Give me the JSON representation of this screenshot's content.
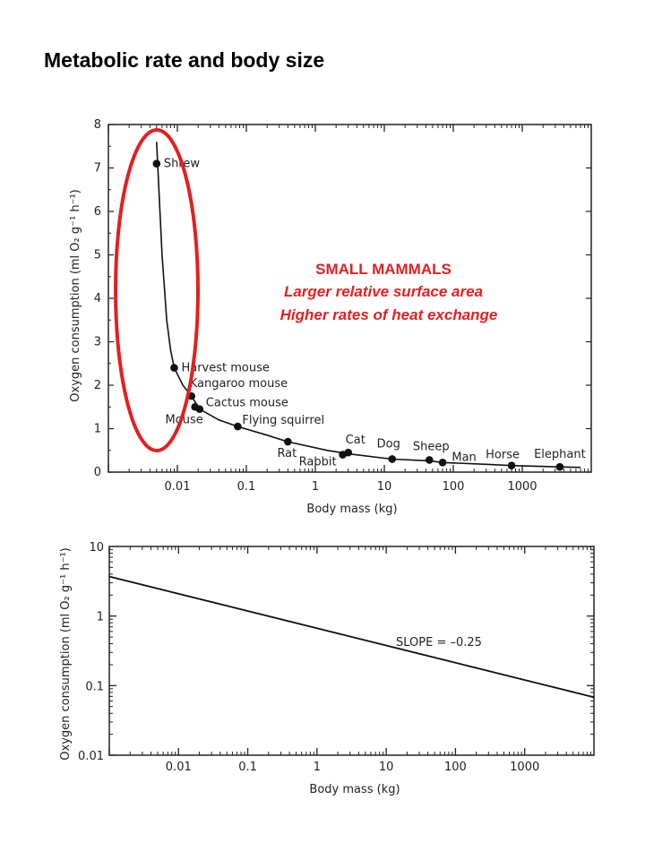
{
  "page": {
    "title": "Metabolic rate and body size"
  },
  "colors": {
    "axis": "#222222",
    "curve": "#111111",
    "highlight": "#e41f1f"
  },
  "chart_data": [
    {
      "type": "line",
      "xlabel": "Body mass (kg)",
      "ylabel": "Oxygen consumption (ml O₂ g⁻¹ h⁻¹)",
      "xscale": "log",
      "xlim": [
        0.001,
        10000
      ],
      "ylim": [
        0,
        8
      ],
      "x_ticks": [
        {
          "value": 0.01,
          "label": "0.01"
        },
        {
          "value": 0.1,
          "label": "0.1"
        },
        {
          "value": 1,
          "label": "1"
        },
        {
          "value": 10,
          "label": "10"
        },
        {
          "value": 100,
          "label": "100"
        },
        {
          "value": 1000,
          "label": "1000"
        }
      ],
      "y_ticks": [
        {
          "value": 0,
          "label": "0"
        },
        {
          "value": 1,
          "label": "1"
        },
        {
          "value": 2,
          "label": "2"
        },
        {
          "value": 3,
          "label": "3"
        },
        {
          "value": 4,
          "label": "4"
        },
        {
          "value": 5,
          "label": "5"
        },
        {
          "value": 6,
          "label": "6"
        },
        {
          "value": 7,
          "label": "7"
        },
        {
          "value": 8,
          "label": "8"
        }
      ],
      "points": [
        {
          "name": "Shrew",
          "x": 0.005,
          "y": 7.1
        },
        {
          "name": "Harvest mouse",
          "x": 0.009,
          "y": 2.4
        },
        {
          "name": "Kangaroo  mouse",
          "x": 0.016,
          "y": 1.75
        },
        {
          "name": "Mouse",
          "x": 0.018,
          "y": 1.5
        },
        {
          "name": "Cactus mouse",
          "x": 0.021,
          "y": 1.45
        },
        {
          "name": "Flying squirrel",
          "x": 0.075,
          "y": 1.05
        },
        {
          "name": "Rat",
          "x": 0.4,
          "y": 0.7
        },
        {
          "name": "Rabbit",
          "x": 2.5,
          "y": 0.4
        },
        {
          "name": "Cat",
          "x": 3.0,
          "y": 0.45
        },
        {
          "name": "Dog",
          "x": 13,
          "y": 0.3
        },
        {
          "name": "Sheep",
          "x": 45,
          "y": 0.28
        },
        {
          "name": "Man",
          "x": 70,
          "y": 0.22
        },
        {
          "name": "Horse",
          "x": 700,
          "y": 0.15
        },
        {
          "name": "Elephant",
          "x": 3500,
          "y": 0.12
        }
      ],
      "curve": [
        [
          0.005,
          7.6
        ],
        [
          0.006,
          5.0
        ],
        [
          0.007,
          3.5
        ],
        [
          0.008,
          2.8
        ],
        [
          0.009,
          2.4
        ],
        [
          0.012,
          2.0
        ],
        [
          0.016,
          1.75
        ],
        [
          0.021,
          1.45
        ],
        [
          0.04,
          1.2
        ],
        [
          0.075,
          1.05
        ],
        [
          0.2,
          0.85
        ],
        [
          0.4,
          0.7
        ],
        [
          1.5,
          0.5
        ],
        [
          3,
          0.42
        ],
        [
          13,
          0.3
        ],
        [
          45,
          0.26
        ],
        [
          70,
          0.22
        ],
        [
          300,
          0.18
        ],
        [
          700,
          0.15
        ],
        [
          3500,
          0.12
        ],
        [
          7000,
          0.11
        ]
      ],
      "annotation": {
        "heading": "SMALL MAMMALS",
        "lines": [
          "Larger relative surface area",
          "Higher rates of heat exchange"
        ]
      }
    },
    {
      "type": "line",
      "xlabel": "Body mass (kg)",
      "ylabel": "Oxygen consumption (ml O₂ g⁻¹ h⁻¹)",
      "xscale": "log",
      "yscale": "log",
      "xlim": [
        0.001,
        10000
      ],
      "ylim": [
        0.01,
        10
      ],
      "x_ticks": [
        {
          "value": 0.01,
          "label": "0.01"
        },
        {
          "value": 0.1,
          "label": "0.1"
        },
        {
          "value": 1,
          "label": "1"
        },
        {
          "value": 10,
          "label": "10"
        },
        {
          "value": 100,
          "label": "100"
        },
        {
          "value": 1000,
          "label": "1000"
        }
      ],
      "y_ticks": [
        {
          "value": 0.01,
          "label": "0.01"
        },
        {
          "value": 0.1,
          "label": "0.1"
        },
        {
          "value": 1,
          "label": "1"
        },
        {
          "value": 10,
          "label": "10"
        }
      ],
      "line": [
        [
          0.001,
          3.7
        ],
        [
          10000,
          0.068
        ]
      ],
      "annotation": "SLOPE = –0.25"
    }
  ]
}
